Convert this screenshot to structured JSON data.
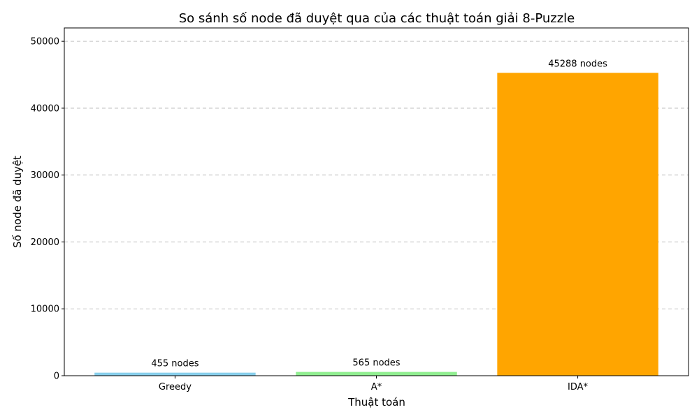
{
  "chart_data": {
    "type": "bar",
    "title": "So sánh số node đã duyệt qua của các thuật toán giải 8-Puzzle",
    "xlabel": "Thuật toán",
    "ylabel": "Số node đã duyệt",
    "categories": [
      "Greedy",
      "A*",
      "IDA*"
    ],
    "values": [
      455,
      565,
      45288
    ],
    "data_labels": [
      "455 nodes",
      "565 nodes",
      "45288 nodes"
    ],
    "colors": [
      "#87ceeb",
      "#90ee90",
      "#ffa500"
    ],
    "ylim": [
      0,
      52000
    ],
    "yticks": [
      0,
      10000,
      20000,
      30000,
      40000,
      50000
    ],
    "ytick_labels": [
      "0",
      "10000",
      "20000",
      "30000",
      "40000",
      "50000"
    ],
    "grid": "y-dashed",
    "legend": "none"
  }
}
